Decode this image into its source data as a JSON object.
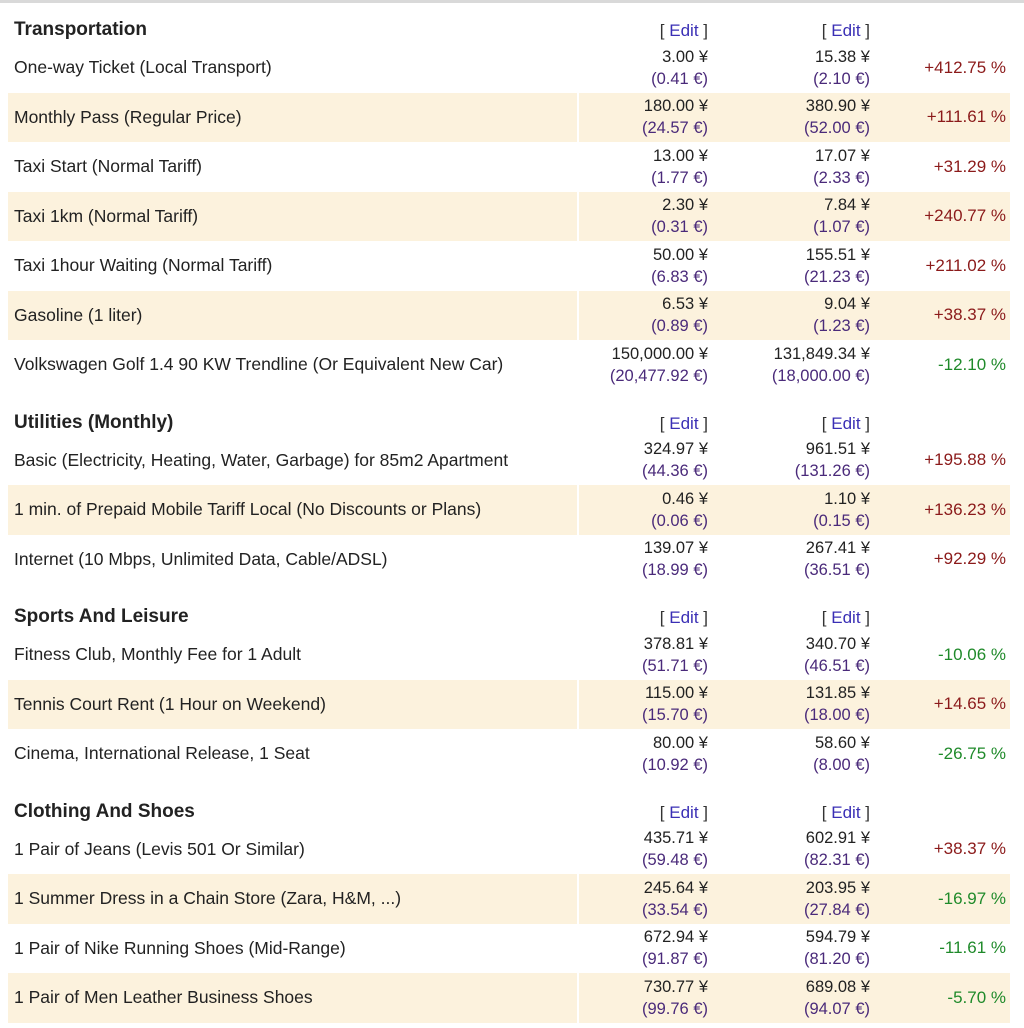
{
  "edit_label": "Edit",
  "colors": {
    "positive": "#8b1a1a",
    "negative": "#1f8a2a",
    "link": "#3a2fb5",
    "alt_row": "#fcf2dd"
  },
  "sections": [
    {
      "title": "Transportation",
      "rows": [
        {
          "label": "One-way Ticket (Local Transport)",
          "a_yen": "3.00 ¥",
          "a_eur": "(0.41 €)",
          "b_yen": "15.38 ¥",
          "b_eur": "(2.10 €)",
          "diff": "+412.75 %"
        },
        {
          "label": "Monthly Pass (Regular Price)",
          "a_yen": "180.00 ¥",
          "a_eur": "(24.57 €)",
          "b_yen": "380.90 ¥",
          "b_eur": "(52.00 €)",
          "diff": "+111.61 %"
        },
        {
          "label": "Taxi Start (Normal Tariff)",
          "a_yen": "13.00 ¥",
          "a_eur": "(1.77 €)",
          "b_yen": "17.07 ¥",
          "b_eur": "(2.33 €)",
          "diff": "+31.29 %"
        },
        {
          "label": "Taxi 1km (Normal Tariff)",
          "a_yen": "2.30 ¥",
          "a_eur": "(0.31 €)",
          "b_yen": "7.84 ¥",
          "b_eur": "(1.07 €)",
          "diff": "+240.77 %"
        },
        {
          "label": "Taxi 1hour Waiting (Normal Tariff)",
          "a_yen": "50.00 ¥",
          "a_eur": "(6.83 €)",
          "b_yen": "155.51 ¥",
          "b_eur": "(21.23 €)",
          "diff": "+211.02 %"
        },
        {
          "label": "Gasoline (1 liter)",
          "a_yen": "6.53 ¥",
          "a_eur": "(0.89 €)",
          "b_yen": "9.04 ¥",
          "b_eur": "(1.23 €)",
          "diff": "+38.37 %"
        },
        {
          "label": "Volkswagen Golf 1.4 90 KW Trendline (Or Equivalent New Car)",
          "a_yen": "150,000.00 ¥",
          "a_eur": "(20,477.92 €)",
          "b_yen": "131,849.34 ¥",
          "b_eur": "(18,000.00 €)",
          "diff": "-12.10 %"
        }
      ]
    },
    {
      "title": "Utilities (Monthly)",
      "rows": [
        {
          "label": "Basic (Electricity, Heating, Water, Garbage) for 85m2 Apartment",
          "a_yen": "324.97 ¥",
          "a_eur": "(44.36 €)",
          "b_yen": "961.51 ¥",
          "b_eur": "(131.26 €)",
          "diff": "+195.88 %"
        },
        {
          "label": "1 min. of Prepaid Mobile Tariff Local (No Discounts or Plans)",
          "a_yen": "0.46 ¥",
          "a_eur": "(0.06 €)",
          "b_yen": "1.10 ¥",
          "b_eur": "(0.15 €)",
          "diff": "+136.23 %"
        },
        {
          "label": "Internet (10 Mbps, Unlimited Data, Cable/ADSL)",
          "a_yen": "139.07 ¥",
          "a_eur": "(18.99 €)",
          "b_yen": "267.41 ¥",
          "b_eur": "(36.51 €)",
          "diff": "+92.29 %"
        }
      ]
    },
    {
      "title": "Sports And Leisure",
      "rows": [
        {
          "label": "Fitness Club, Monthly Fee for 1 Adult",
          "a_yen": "378.81 ¥",
          "a_eur": "(51.71 €)",
          "b_yen": "340.70 ¥",
          "b_eur": "(46.51 €)",
          "diff": "-10.06 %"
        },
        {
          "label": "Tennis Court Rent (1 Hour on Weekend)",
          "a_yen": "115.00 ¥",
          "a_eur": "(15.70 €)",
          "b_yen": "131.85 ¥",
          "b_eur": "(18.00 €)",
          "diff": "+14.65 %"
        },
        {
          "label": "Cinema, International Release, 1 Seat",
          "a_yen": "80.00 ¥",
          "a_eur": "(10.92 €)",
          "b_yen": "58.60 ¥",
          "b_eur": "(8.00 €)",
          "diff": "-26.75 %"
        }
      ]
    },
    {
      "title": "Clothing And Shoes",
      "rows": [
        {
          "label": "1 Pair of Jeans (Levis 501 Or Similar)",
          "a_yen": "435.71 ¥",
          "a_eur": "(59.48 €)",
          "b_yen": "602.91 ¥",
          "b_eur": "(82.31 €)",
          "diff": "+38.37 %"
        },
        {
          "label": "1 Summer Dress in a Chain Store (Zara, H&M, ...)",
          "a_yen": "245.64 ¥",
          "a_eur": "(33.54 €)",
          "b_yen": "203.95 ¥",
          "b_eur": "(27.84 €)",
          "diff": "-16.97 %"
        },
        {
          "label": "1 Pair of Nike Running Shoes (Mid-Range)",
          "a_yen": "672.94 ¥",
          "a_eur": "(91.87 €)",
          "b_yen": "594.79 ¥",
          "b_eur": "(81.20 €)",
          "diff": "-11.61 %"
        },
        {
          "label": "1 Pair of Men Leather Business Shoes",
          "a_yen": "730.77 ¥",
          "a_eur": "(99.76 €)",
          "b_yen": "689.08 ¥",
          "b_eur": "(94.07 €)",
          "diff": "-5.70 %"
        }
      ]
    }
  ]
}
